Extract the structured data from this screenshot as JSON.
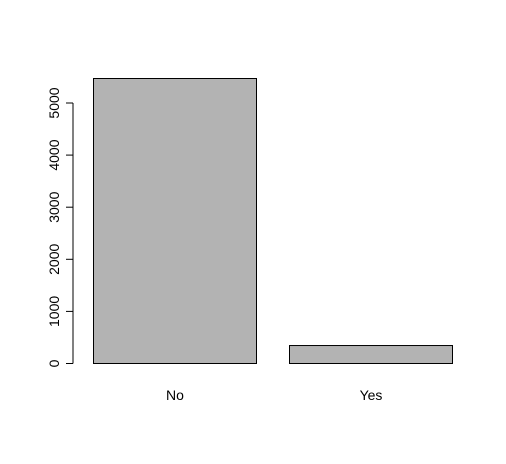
{
  "chart_data": {
    "type": "bar",
    "categories": [
      "No",
      "Yes"
    ],
    "values": [
      5470,
      345
    ],
    "title": "",
    "xlabel": "",
    "ylabel": "",
    "ylim": [
      0,
      5470
    ],
    "yticks": [
      "0",
      "1000",
      "2000",
      "3000",
      "4000",
      "5000"
    ],
    "grid": false,
    "legend": "none",
    "bar_fill": "#b3b3b3",
    "bar_stroke": "#000000"
  }
}
